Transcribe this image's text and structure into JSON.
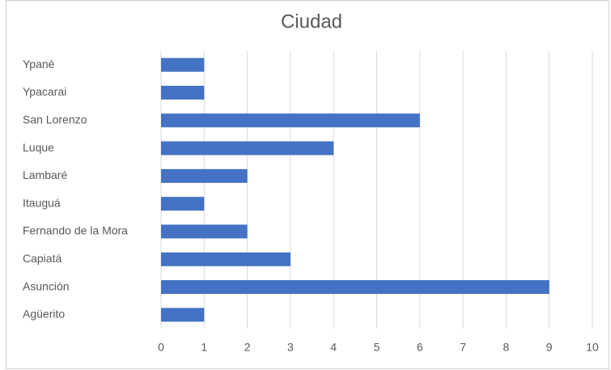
{
  "chart_data": {
    "type": "bar",
    "orientation": "horizontal",
    "title": "Ciudad",
    "categories": [
      "Ypanè",
      "Ypacarai",
      "San Lorenzo",
      "Luque",
      "Lambaré",
      "Itauguá",
      "Fernando de la Mora",
      "Capiatá",
      "Asunción",
      "Agüerito"
    ],
    "values": [
      1,
      1,
      6,
      4,
      2,
      1,
      2,
      3,
      9,
      1
    ],
    "color": "#4472c4",
    "xlim": [
      0,
      10
    ],
    "xticks": [
      0,
      1,
      2,
      3,
      4,
      5,
      6,
      7,
      8,
      9,
      10
    ],
    "grid": true
  }
}
